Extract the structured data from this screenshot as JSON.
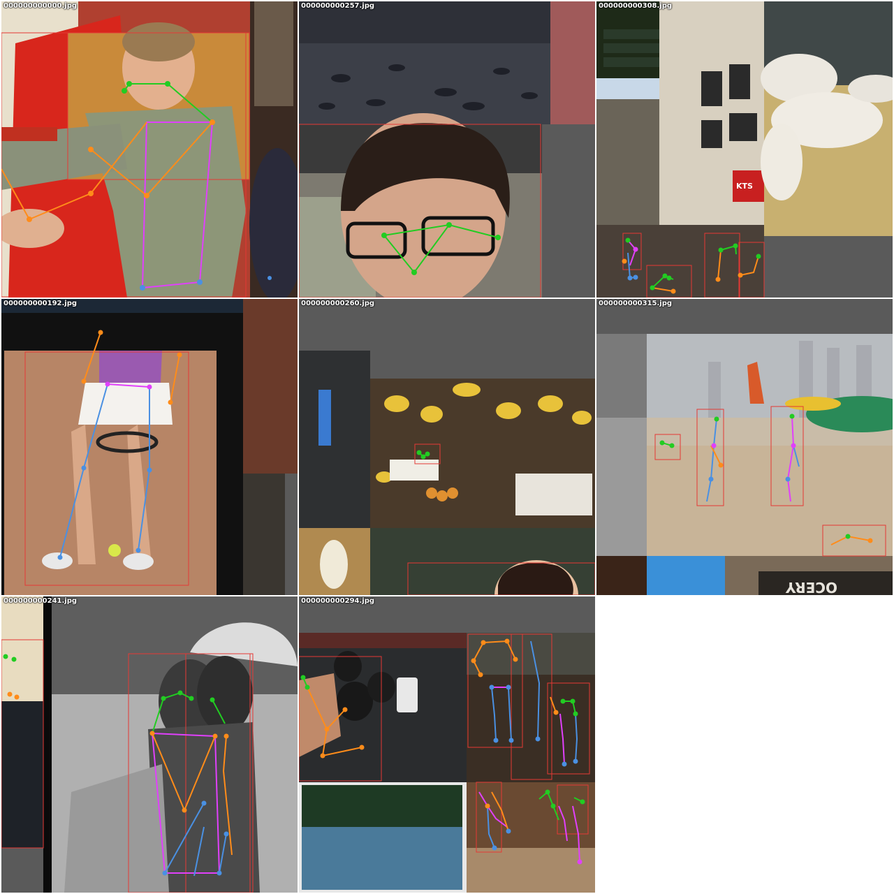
{
  "tiles": [
    {
      "filename": "000000000000.jpg",
      "name": "tile-1"
    },
    {
      "filename": "000000000257.jpg",
      "name": "tile-2"
    },
    {
      "filename": "000000000308.jpg",
      "name": "tile-3"
    },
    {
      "filename": "000000000192.jpg",
      "name": "tile-4"
    },
    {
      "filename": "000000000260.jpg",
      "name": "tile-5"
    },
    {
      "filename": "000000000315.jpg",
      "name": "tile-6"
    },
    {
      "filename": "000000000241.jpg",
      "name": "tile-7"
    },
    {
      "filename": "000000000294.jpg",
      "name": "tile-8"
    }
  ],
  "image_text": {
    "shop_sign": "KTS",
    "grocery_sign": "OCERY"
  },
  "colors": {
    "box": "#e53935",
    "face": "#22cc22",
    "arm": "#ff8c1a",
    "torso": "#e040fb",
    "leg": "#4a90e2",
    "letterbox": "#5a5a5a"
  }
}
